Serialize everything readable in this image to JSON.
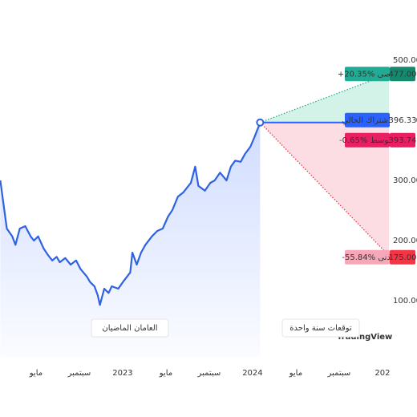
{
  "chart_data": {
    "type": "line",
    "xlim": [
      -11.33,
      24.6
    ],
    "ylim": [
      6.7,
      600
    ],
    "xticks": [
      {
        "value": -8,
        "label": "مايو"
      },
      {
        "value": -4,
        "label": "سبتمبر"
      },
      {
        "value": 0,
        "label": "2023"
      },
      {
        "value": 4,
        "label": "مايو"
      },
      {
        "value": 8,
        "label": "سبتمبر"
      },
      {
        "value": 12,
        "label": "2024"
      },
      {
        "value": 16,
        "label": "مايو"
      },
      {
        "value": 20,
        "label": "سبتمبر"
      },
      {
        "value": 24,
        "label": "202"
      }
    ],
    "yticks": [
      {
        "value": 100,
        "label": "100.00"
      },
      {
        "value": 200,
        "label": "200.00"
      },
      {
        "value": 300,
        "label": "300.00"
      },
      {
        "value": 400,
        "label": "400.00"
      },
      {
        "value": 500,
        "label": "500.00"
      }
    ],
    "series": [
      {
        "color": "#2f62e0",
        "x": [
          -11.3,
          -10.7,
          -10.2,
          -9.9,
          -9.5,
          -9.0,
          -8.5,
          -8.2,
          -7.8,
          -7.3,
          -6.9,
          -6.5,
          -6.1,
          -5.8,
          -5.3,
          -4.8,
          -4.3,
          -3.9,
          -3.3,
          -3.0,
          -2.6,
          -2.3,
          -2.1,
          -1.7,
          -1.3,
          -1.0,
          -0.4,
          0.1,
          0.7,
          0.9,
          1.3,
          1.7,
          2.1,
          2.7,
          3.2,
          3.7,
          4.2,
          4.6,
          5.1,
          5.6,
          5.9,
          6.3,
          6.7,
          7.0,
          7.6,
          8.1,
          8.5,
          9.0,
          9.6,
          10.0,
          10.4,
          10.9,
          11.3,
          11.8,
          12.2,
          12.7
        ],
        "values": [
          300,
          220,
          207,
          193,
          220,
          224,
          207,
          200,
          207,
          187,
          176,
          167,
          173,
          164,
          171,
          160,
          167,
          153,
          140,
          131,
          124,
          109,
          93,
          120,
          113,
          124,
          120,
          133,
          147,
          180,
          160,
          180,
          193,
          207,
          216,
          220,
          240,
          251,
          273,
          280,
          287,
          296,
          323,
          291,
          283,
          296,
          300,
          313,
          300,
          323,
          333,
          331,
          344,
          356,
          373,
          396.33
        ]
      }
    ],
    "forecast": {
      "x": 24.6,
      "high": {
        "value": 477,
        "value_label": "477.00",
        "label": "+20.35% أقصى",
        "color": "#22ab94"
      },
      "current": {
        "value": 396.33,
        "value_label": "396.33",
        "label": "لاشتراك الحالي",
        "color": "#2962ff"
      },
      "average": {
        "value": 393.74,
        "value_label": "393.74",
        "label": "-0.65% متوسط",
        "color": "#e91e63"
      },
      "low": {
        "value": 175,
        "value_label": "175.00",
        "label": "-55.84% أدنى",
        "color": "#f23645"
      }
    },
    "annotations": [
      "العامان الماضيان",
      "توقعات سنة واحدة"
    ],
    "watermark": "TradingView"
  }
}
